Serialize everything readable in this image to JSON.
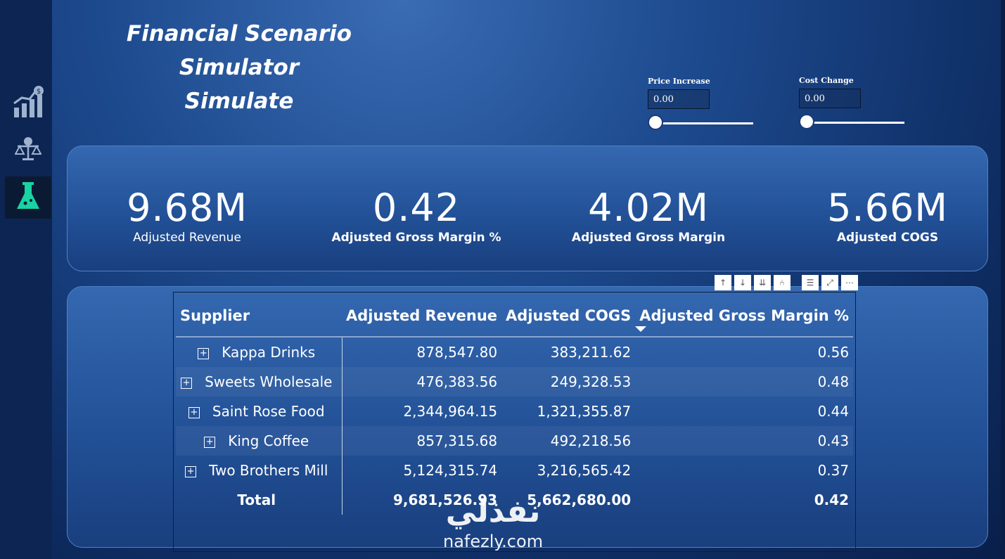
{
  "title_lines": [
    "Financial Scenario",
    "Simulator",
    "Simulate"
  ],
  "sidebar": {
    "items": [
      {
        "name": "growth-chart-icon",
        "active": false
      },
      {
        "name": "scale-icon",
        "active": false
      },
      {
        "name": "flask-icon",
        "active": true
      }
    ]
  },
  "params": {
    "price": {
      "label": "Price Increase",
      "value": "0.00",
      "slider_fraction": 0
    },
    "cost": {
      "label": "Cost Change",
      "value": "0.00",
      "slider_fraction": 0
    }
  },
  "kpis": [
    {
      "value": "9.68M",
      "label": "Adjusted Revenue"
    },
    {
      "value": "0.42",
      "label": "Adjusted Gross Margin %"
    },
    {
      "value": "4.02M",
      "label": "Adjusted Gross Margin"
    },
    {
      "value": "5.66M",
      "label": "Adjusted COGS"
    }
  ],
  "table": {
    "headers": [
      "Supplier",
      "Adjusted Revenue",
      "Adjusted COGS",
      "Adjusted Gross Margin %"
    ],
    "rows": [
      [
        "Kappa Drinks",
        "878,547.80",
        "383,211.62",
        "0.56"
      ],
      [
        "Sweets Wholesale",
        "476,383.56",
        "249,328.53",
        "0.48"
      ],
      [
        "Saint Rose Food",
        "2,344,964.15",
        "1,321,355.87",
        "0.44"
      ],
      [
        "King Coffee",
        "857,315.68",
        "492,218.56",
        "0.43"
      ],
      [
        "Two Brothers Mill",
        "5,124,315.74",
        "3,216,565.42",
        "0.37"
      ]
    ],
    "total": [
      "Total",
      "9,681,526.93",
      "5,662,680.00",
      "0.42"
    ]
  },
  "toolbar": [
    "arrow-up-icon",
    "arrow-down-icon",
    "double-arrow-down-icon",
    "expand-hierarchy-icon",
    "filter-icon",
    "focus-mode-icon",
    "more-options-icon"
  ],
  "watermark": {
    "arabic": "نفذلي",
    "latin": "nafezly.com"
  },
  "colors": {
    "accent_active_icon": "#19d3a2",
    "icon_color": "#9fb3cf"
  }
}
